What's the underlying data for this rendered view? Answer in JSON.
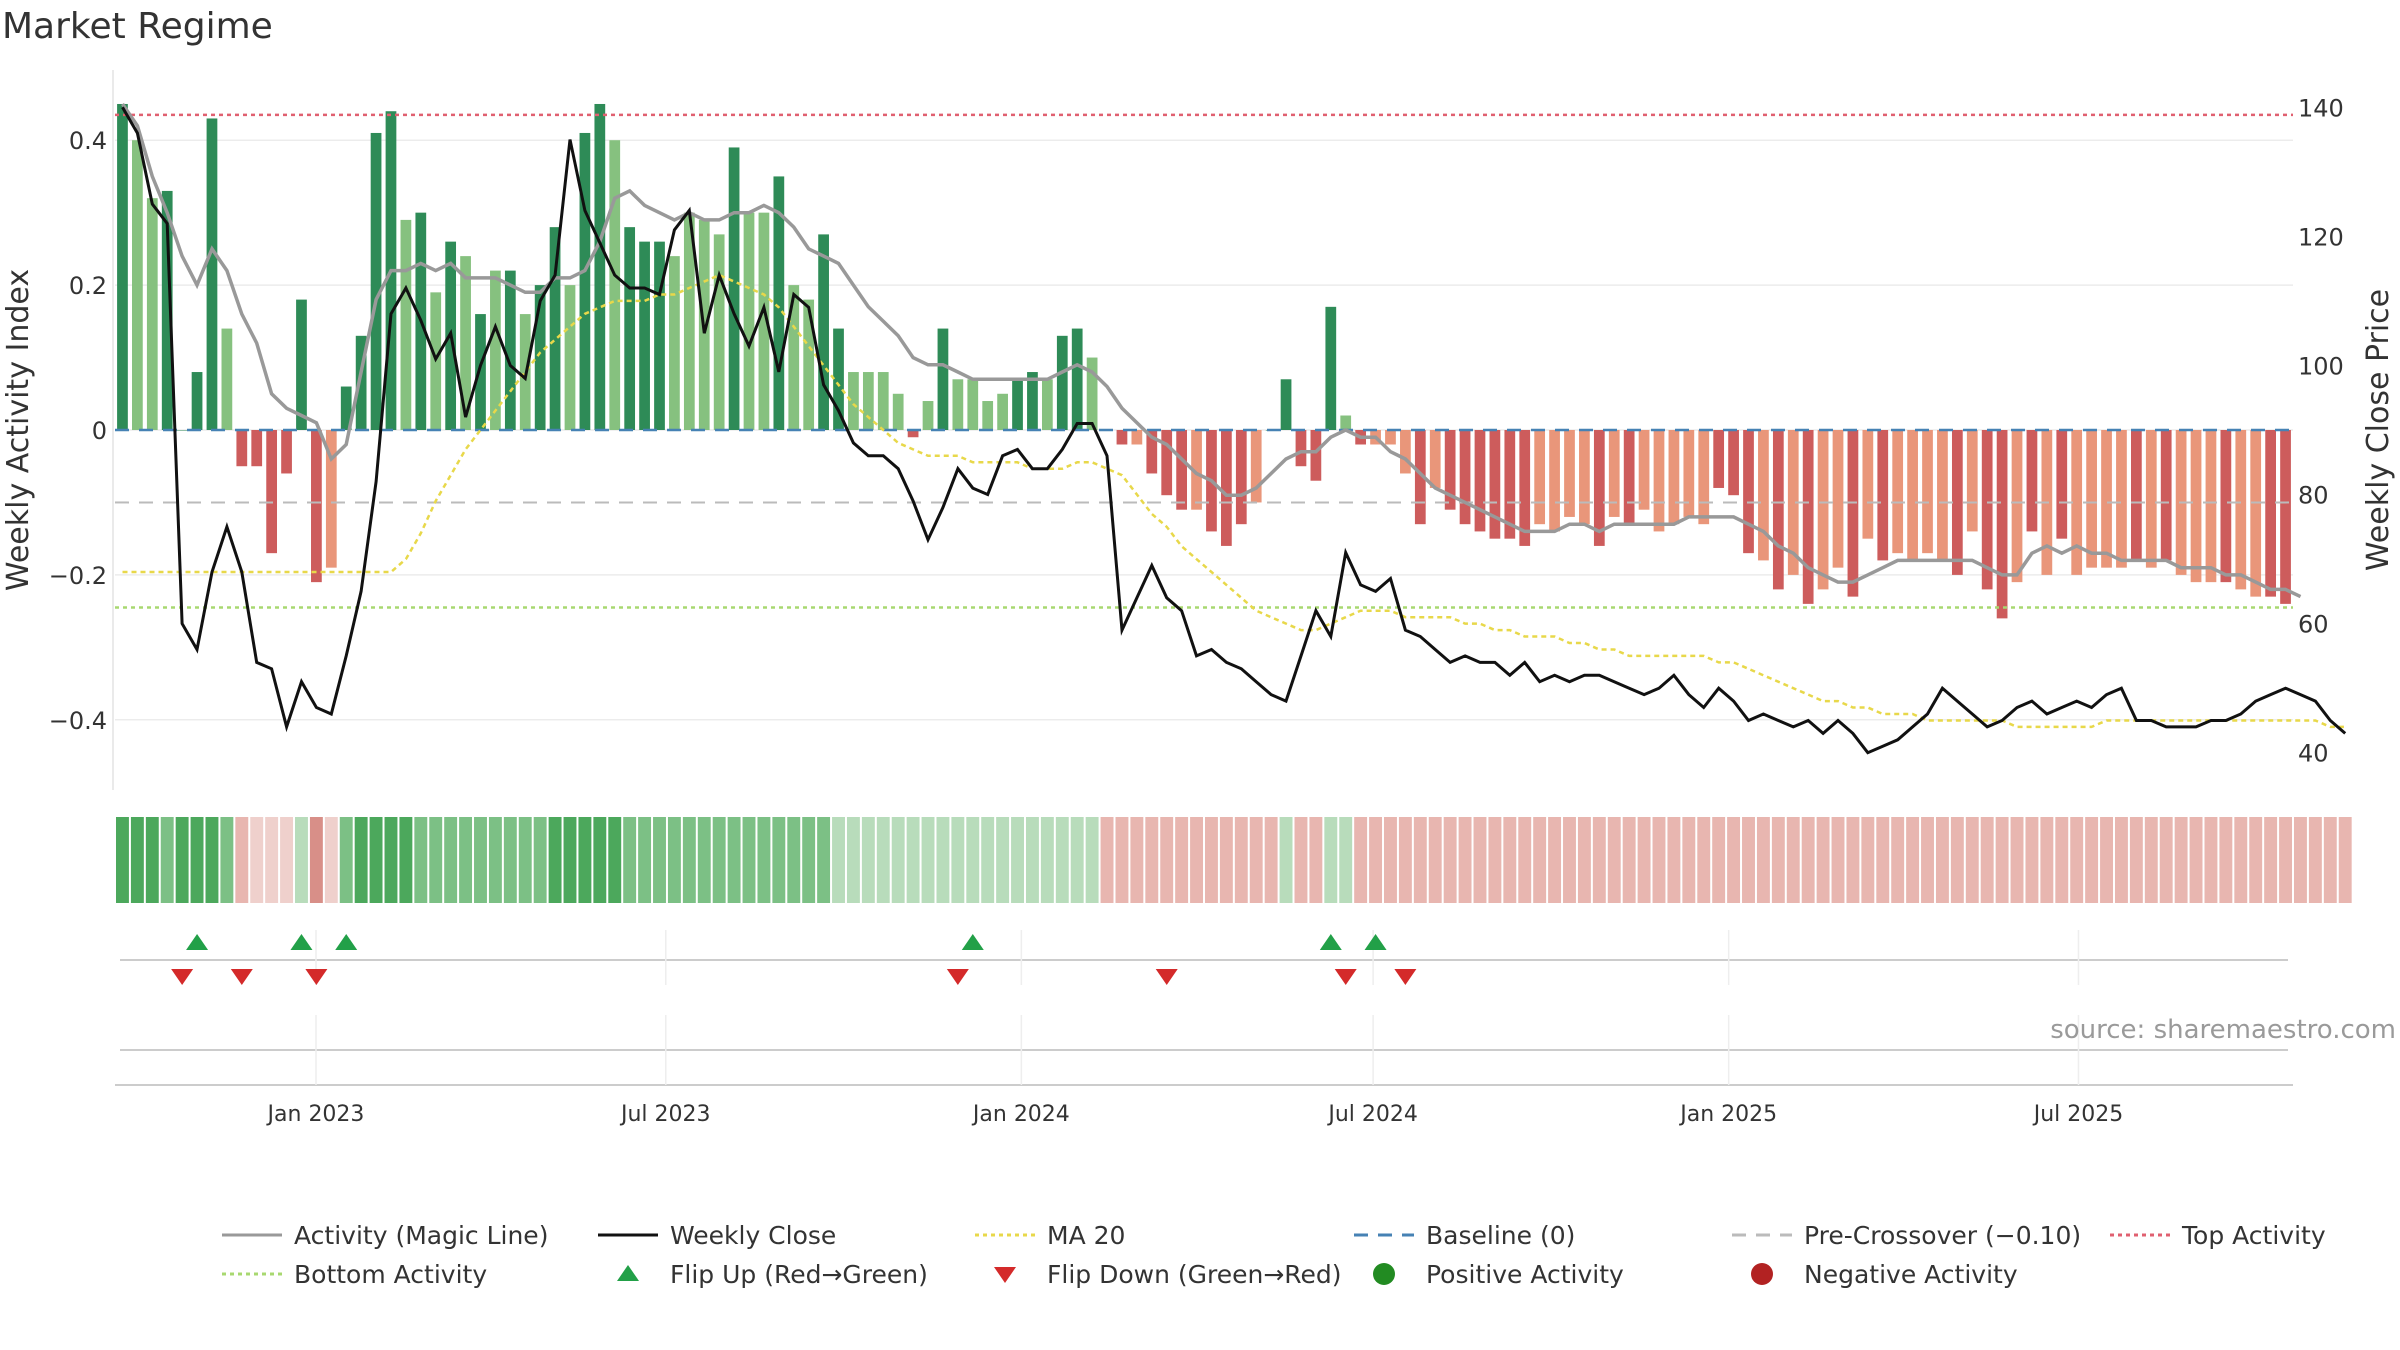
{
  "chart_data": {
    "title": "Market Regime",
    "source": "source: sharemaestro.com",
    "type": "bar",
    "ylabel": "Weekly Activity Index",
    "y2label": "Weekly Close Price",
    "ylim": [
      -0.49,
      0.49
    ],
    "y2lim": [
      35,
      145
    ],
    "yticks": [
      {
        "v": 0.4,
        "label": "0.4"
      },
      {
        "v": 0.2,
        "label": "0.2"
      },
      {
        "v": 0,
        "label": "0"
      },
      {
        "v": -0.2,
        "label": "−0.2"
      },
      {
        "v": -0.4,
        "label": "−0.4"
      }
    ],
    "y2ticks": [
      {
        "v": 140,
        "label": "140"
      },
      {
        "v": 120,
        "label": "120"
      },
      {
        "v": 100,
        "label": "100"
      },
      {
        "v": 80,
        "label": "80"
      },
      {
        "v": 60,
        "label": "60"
      },
      {
        "v": 40,
        "label": "40"
      }
    ],
    "x_start": "2022-09-19",
    "x_end": "2025-10-20",
    "xticks": [
      {
        "date": "2023-01-01",
        "label": "Jan 2023"
      },
      {
        "date": "2023-07-01",
        "label": "Jul 2023"
      },
      {
        "date": "2024-01-01",
        "label": "Jan 2024"
      },
      {
        "date": "2024-07-01",
        "label": "Jul 2024"
      },
      {
        "date": "2025-01-01",
        "label": "Jan 2025"
      },
      {
        "date": "2025-07-01",
        "label": "Jul 2025"
      }
    ],
    "reference_lines": {
      "top_activity": 0.435,
      "bottom_activity": -0.245,
      "pre_crossover": -0.1,
      "baseline": 0
    },
    "colors": {
      "strong_green": "#2e8b57",
      "light_green": "#86c17f",
      "strong_red": "#cd5c5c",
      "light_red": "#e9967a",
      "magic_line": "#999999",
      "close": "#111111",
      "ma20": "#e8d84a",
      "baseline": "#4682b4",
      "pre_crossover": "#bbbbbb",
      "top_activity": "#e06070",
      "bottom_activity": "#a8d870",
      "flip_up": "#22a048",
      "flip_down": "#d42a2a",
      "positive": "#228b22",
      "negative": "#b22222"
    },
    "activity": [
      0.45,
      0.4,
      0.32,
      0.33,
      0.0,
      0.08,
      0.43,
      0.14,
      -0.05,
      -0.05,
      -0.17,
      -0.06,
      0.18,
      -0.21,
      -0.19,
      0.06,
      0.13,
      0.41,
      0.44,
      0.29,
      0.3,
      0.19,
      0.26,
      0.24,
      0.16,
      0.22,
      0.22,
      0.16,
      0.2,
      0.28,
      0.2,
      0.41,
      0.45,
      0.4,
      0.28,
      0.26,
      0.26,
      0.24,
      0.3,
      0.29,
      0.27,
      0.39,
      0.3,
      0.3,
      0.35,
      0.2,
      0.18,
      0.27,
      0.14,
      0.08,
      0.08,
      0.08,
      0.05,
      -0.01,
      0.04,
      0.14,
      0.07,
      0.07,
      0.04,
      0.05,
      0.07,
      0.08,
      0.07,
      0.13,
      0.14,
      0.1,
      0.0,
      -0.02,
      -0.02,
      -0.06,
      -0.09,
      -0.11,
      -0.11,
      -0.14,
      -0.16,
      -0.13,
      -0.1,
      0.0,
      0.07,
      -0.05,
      -0.07,
      0.17,
      0.02,
      -0.02,
      -0.02,
      -0.02,
      -0.06,
      -0.13,
      -0.08,
      -0.11,
      -0.13,
      -0.14,
      -0.15,
      -0.15,
      -0.16,
      -0.13,
      -0.14,
      -0.12,
      -0.13,
      -0.16,
      -0.12,
      -0.13,
      -0.11,
      -0.14,
      -0.13,
      -0.12,
      -0.13,
      -0.08,
      -0.09,
      -0.17,
      -0.18,
      -0.22,
      -0.2,
      -0.24,
      -0.22,
      -0.19,
      -0.23,
      -0.15,
      -0.18,
      -0.17,
      -0.18,
      -0.17,
      -0.18,
      -0.2,
      -0.14,
      -0.22,
      -0.26,
      -0.21,
      -0.14,
      -0.2,
      -0.15,
      -0.2,
      -0.19,
      -0.19,
      -0.19,
      -0.18,
      -0.19,
      -0.18,
      -0.2,
      -0.21,
      -0.21,
      -0.21,
      -0.22,
      -0.23,
      -0.23,
      -0.24
    ],
    "activity_strong": [
      true,
      false,
      false,
      true,
      true,
      true,
      true,
      false,
      true,
      true,
      true,
      true,
      true,
      true,
      false,
      true,
      true,
      true,
      true,
      false,
      true,
      false,
      true,
      false,
      true,
      false,
      true,
      false,
      true,
      true,
      false,
      true,
      true,
      false,
      true,
      true,
      true,
      false,
      false,
      false,
      false,
      true,
      false,
      false,
      true,
      false,
      false,
      true,
      true,
      false,
      false,
      false,
      false,
      true,
      false,
      true,
      false,
      false,
      false,
      false,
      true,
      true,
      false,
      true,
      true,
      false,
      true,
      true,
      false,
      true,
      true,
      true,
      false,
      true,
      true,
      true,
      false,
      true,
      true,
      true,
      true,
      true,
      false,
      true,
      false,
      false,
      false,
      true,
      false,
      true,
      true,
      true,
      true,
      true,
      true,
      false,
      false,
      false,
      false,
      true,
      false,
      true,
      false,
      false,
      false,
      false,
      false,
      true,
      true,
      true,
      false,
      true,
      false,
      true,
      false,
      false,
      true,
      false,
      true,
      false,
      false,
      false,
      false,
      true,
      false,
      true,
      true,
      false,
      true,
      false,
      true,
      false,
      false,
      false,
      false,
      true,
      false,
      true,
      false,
      false,
      false,
      true,
      false,
      false,
      true,
      true,
      false,
      true
    ],
    "magic_line": [
      0.45,
      0.42,
      0.35,
      0.3,
      0.24,
      0.2,
      0.25,
      0.22,
      0.16,
      0.12,
      0.05,
      0.03,
      0.02,
      0.01,
      -0.04,
      -0.02,
      0.08,
      0.18,
      0.22,
      0.22,
      0.23,
      0.22,
      0.23,
      0.21,
      0.21,
      0.21,
      0.2,
      0.19,
      0.19,
      0.21,
      0.21,
      0.22,
      0.26,
      0.32,
      0.33,
      0.31,
      0.3,
      0.29,
      0.3,
      0.29,
      0.29,
      0.3,
      0.3,
      0.31,
      0.3,
      0.28,
      0.25,
      0.24,
      0.23,
      0.2,
      0.17,
      0.15,
      0.13,
      0.1,
      0.09,
      0.09,
      0.08,
      0.07,
      0.07,
      0.07,
      0.07,
      0.07,
      0.07,
      0.08,
      0.09,
      0.08,
      0.06,
      0.03,
      0.01,
      -0.01,
      -0.02,
      -0.04,
      -0.06,
      -0.07,
      -0.09,
      -0.09,
      -0.08,
      -0.06,
      -0.04,
      -0.03,
      -0.03,
      -0.01,
      0.0,
      -0.01,
      -0.01,
      -0.03,
      -0.04,
      -0.06,
      -0.08,
      -0.09,
      -0.1,
      -0.11,
      -0.12,
      -0.13,
      -0.14,
      -0.14,
      -0.14,
      -0.13,
      -0.13,
      -0.14,
      -0.13,
      -0.13,
      -0.13,
      -0.13,
      -0.13,
      -0.12,
      -0.12,
      -0.12,
      -0.12,
      -0.13,
      -0.14,
      -0.16,
      -0.17,
      -0.19,
      -0.2,
      -0.21,
      -0.21,
      -0.2,
      -0.19,
      -0.18,
      -0.18,
      -0.18,
      -0.18,
      -0.18,
      -0.18,
      -0.19,
      -0.2,
      -0.2,
      -0.17,
      -0.16,
      -0.17,
      -0.16,
      -0.17,
      -0.17,
      -0.18,
      -0.18,
      -0.18,
      -0.18,
      -0.19,
      -0.19,
      -0.19,
      -0.2,
      -0.2,
      -0.21,
      -0.22,
      -0.22,
      -0.23
    ],
    "close": [
      140,
      136,
      125,
      122,
      60,
      56,
      68,
      75,
      68,
      54,
      53,
      44,
      51,
      47,
      46,
      55,
      65,
      82,
      108,
      112,
      107,
      101,
      105,
      92,
      100,
      106,
      100,
      98,
      110,
      114,
      135,
      124,
      119,
      114,
      112,
      112,
      111,
      121,
      124,
      105,
      114,
      108,
      103,
      109,
      99,
      111,
      109,
      97,
      93,
      88,
      86,
      86,
      84,
      79,
      73,
      78,
      84,
      81,
      80,
      86,
      87,
      84,
      84,
      87,
      91,
      91,
      86,
      59,
      64,
      69,
      64,
      62,
      55,
      56,
      54,
      53,
      51,
      49,
      48,
      55,
      62,
      58,
      71,
      66,
      65,
      67,
      59,
      58,
      56,
      54,
      55,
      54,
      54,
      52,
      54,
      51,
      52,
      51,
      52,
      52,
      51,
      50,
      49,
      50,
      52,
      49,
      47,
      50,
      48,
      45,
      46,
      45,
      44,
      45,
      43,
      45,
      43,
      40,
      41,
      42,
      44,
      46,
      50,
      48,
      46,
      44,
      45,
      47,
      48,
      46,
      47,
      48,
      47,
      49,
      50,
      45,
      45,
      44,
      44,
      44,
      45,
      45,
      46,
      48,
      49,
      50,
      49,
      48,
      45,
      43
    ],
    "ma20": [
      68,
      68,
      68,
      68,
      68,
      68,
      68,
      68,
      68,
      68,
      68,
      68,
      68,
      68,
      68,
      68,
      68,
      68,
      68,
      70,
      74,
      79,
      83,
      87,
      90,
      93,
      96,
      99,
      102,
      104,
      106,
      108,
      109,
      110,
      110,
      110,
      111,
      111,
      112,
      113,
      114,
      113,
      112,
      111,
      109,
      106,
      103,
      100,
      97,
      94,
      92,
      90,
      88,
      87,
      86,
      86,
      86,
      85,
      85,
      85,
      85,
      84,
      84,
      84,
      85,
      85,
      84,
      83,
      80,
      77,
      75,
      72,
      70,
      68,
      66,
      64,
      62,
      61,
      60,
      59,
      59,
      60,
      61,
      62,
      62,
      62,
      61,
      61,
      61,
      61,
      60,
      60,
      59,
      59,
      58,
      58,
      58,
      57,
      57,
      56,
      56,
      55,
      55,
      55,
      55,
      55,
      55,
      54,
      54,
      53,
      52,
      51,
      50,
      49,
      48,
      48,
      47,
      47,
      46,
      46,
      46,
      45,
      45,
      45,
      45,
      45,
      45,
      44,
      44,
      44,
      44,
      44,
      44,
      45,
      45,
      45,
      45,
      45,
      45,
      45,
      45,
      45,
      45,
      45,
      45,
      45,
      45,
      45,
      44,
      44
    ],
    "regime_strip": [
      3,
      3,
      3,
      2,
      3,
      3,
      3,
      2,
      -1,
      -2,
      -2,
      -2,
      1,
      -3,
      -2,
      2,
      3,
      3,
      3,
      3,
      2,
      2,
      2,
      2,
      2,
      2,
      2,
      2,
      2,
      3,
      3,
      3,
      3,
      3,
      2,
      2,
      2,
      2,
      2,
      2,
      2,
      2,
      2,
      2,
      2,
      2,
      2,
      2,
      1,
      1,
      1,
      1,
      1,
      1,
      1,
      1,
      1,
      1,
      1,
      1,
      1,
      1,
      1,
      1,
      1,
      1,
      -1,
      -1,
      -1,
      -1,
      -1,
      -1,
      -1,
      -1,
      -1,
      -1,
      -1,
      -1,
      1,
      -1,
      -1,
      1,
      1,
      -1,
      -1,
      -1,
      -1,
      -1,
      -1,
      -1,
      -1,
      -1,
      -1,
      -1,
      -1,
      -1,
      -1,
      -1,
      -1,
      -1,
      -1,
      -1,
      -1,
      -1,
      -1,
      -1,
      -1,
      -1,
      -1,
      -1,
      -1,
      -1,
      -1,
      -1,
      -1,
      -1,
      -1,
      -1,
      -1,
      -1,
      -1,
      -1,
      -1,
      -1,
      -1,
      -1,
      -1,
      -1,
      -1,
      -1,
      -1,
      -1,
      -1,
      -1,
      -1,
      -1,
      -1,
      -1,
      -1,
      -1,
      -1,
      -1,
      -1,
      -1,
      -1,
      -1,
      -1,
      -1,
      -1,
      -1
    ],
    "flip_up_weeks": [
      5,
      12,
      15,
      57,
      81,
      84
    ],
    "flip_down_weeks": [
      4,
      8,
      13,
      56,
      70,
      82,
      86
    ],
    "legend": [
      {
        "label": "Activity (Magic Line)",
        "kind": "line",
        "color": "#999999",
        "dash": ""
      },
      {
        "label": "Weekly Close",
        "kind": "line",
        "color": "#111111",
        "dash": ""
      },
      {
        "label": "MA 20",
        "kind": "line",
        "color": "#e8d84a",
        "dash": "4,4"
      },
      {
        "label": "Baseline (0)",
        "kind": "line",
        "color": "#4682b4",
        "dash": "14,10"
      },
      {
        "label": "Pre-Crossover (−0.10)",
        "kind": "line",
        "color": "#bbbbbb",
        "dash": "14,10"
      },
      {
        "label": "Top Activity",
        "kind": "line",
        "color": "#e06070",
        "dash": "4,4"
      },
      {
        "label": "Bottom Activity",
        "kind": "line",
        "color": "#a8d870",
        "dash": "4,4"
      },
      {
        "label": "Flip Up (Red→Green)",
        "kind": "tri-up",
        "color": "#22a048",
        "dash": ""
      },
      {
        "label": "Flip Down (Green→Red)",
        "kind": "tri-down",
        "color": "#d42a2a",
        "dash": ""
      },
      {
        "label": "Positive Activity",
        "kind": "dot",
        "color": "#228b22",
        "dash": ""
      },
      {
        "label": "Negative Activity",
        "kind": "dot",
        "color": "#b22222",
        "dash": ""
      }
    ]
  }
}
